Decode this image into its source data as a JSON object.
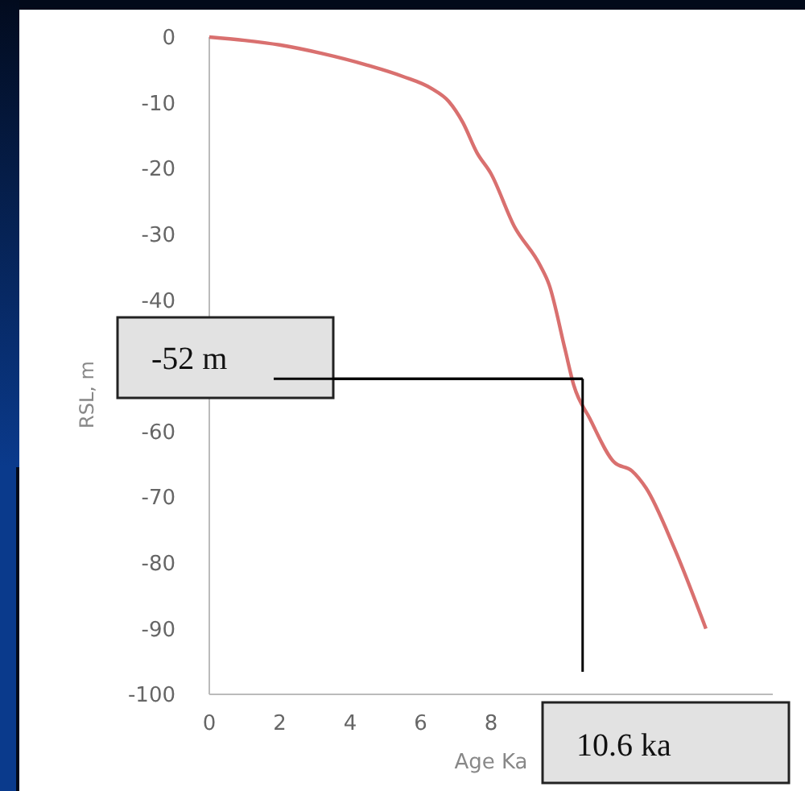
{
  "chart_data": {
    "type": "line",
    "xlabel": "Age Ka",
    "ylabel": "RSL, m",
    "x": [
      0,
      1,
      2,
      3.2,
      4.5,
      5.5,
      6.3,
      6.8,
      7.2,
      7.6,
      8,
      8.65,
      9.4,
      9.65,
      10.1,
      10.35,
      10.8,
      11.5,
      12,
      12.4,
      13.2,
      14.1
    ],
    "series": [
      {
        "color": "#d9706f",
        "values": [
          0,
          -0.5,
          -1.2,
          -2.5,
          -4.3,
          -6,
          -7.8,
          -9.8,
          -13,
          -17.6,
          -20.8,
          -28.7,
          -34.8,
          -37.7,
          -47.5,
          -53,
          -58,
          -64.7,
          -66,
          -68.6,
          -77.7,
          -90
        ]
      }
    ],
    "xlim": [
      0,
      16
    ],
    "xticks": [
      0,
      2,
      4,
      6,
      8
    ],
    "ylim": [
      -100,
      0
    ],
    "yticks": [
      0,
      -10,
      -20,
      -30,
      -40,
      -60,
      -70,
      -80,
      -90,
      -100
    ],
    "ref_lines": [
      {
        "axis": "y",
        "value": -52,
        "label": "-52 m",
        "color": "#000000"
      },
      {
        "axis": "x",
        "value": 10.6,
        "label": "10.6 ka",
        "color": "#000000"
      }
    ],
    "grid": false,
    "marker": "none",
    "line_style": "solid"
  }
}
